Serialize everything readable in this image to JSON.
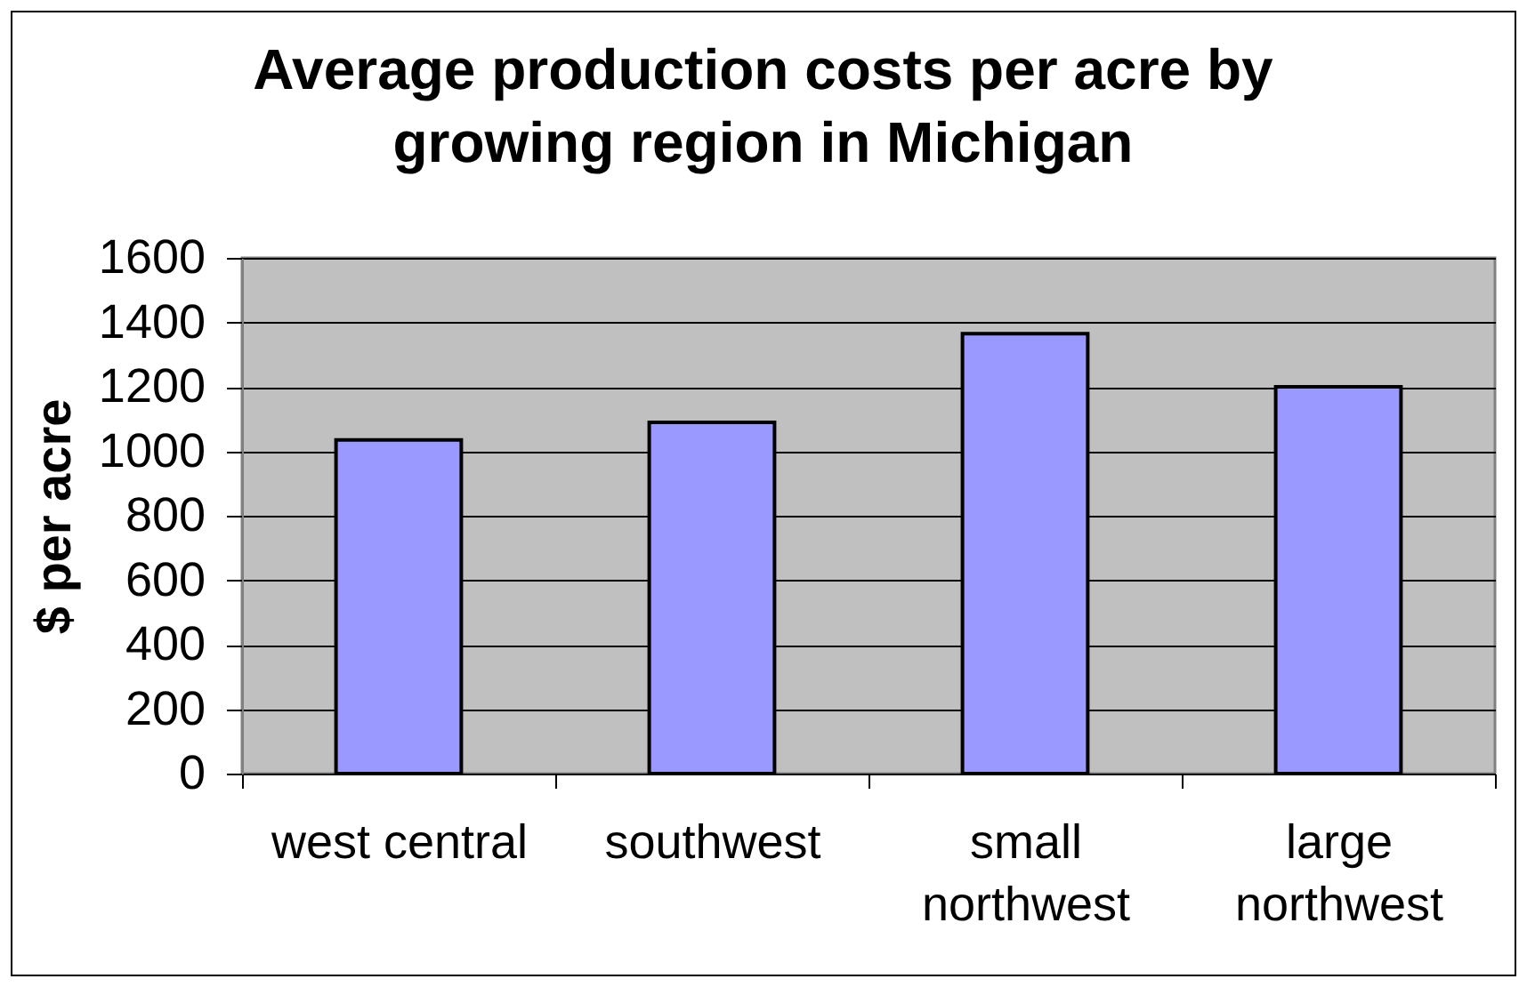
{
  "chart_data": {
    "type": "bar",
    "title": "Average production costs per acre by growing region in Michigan",
    "ylabel": "$ per acre",
    "categories": [
      "west central",
      "southwest",
      "small northwest",
      "large northwest"
    ],
    "values": [
      1035,
      1090,
      1365,
      1200
    ],
    "color": "#9999ff",
    "ylim": [
      0,
      1600
    ],
    "yticks": [
      0,
      200,
      400,
      600,
      800,
      1000,
      1200,
      1400,
      1600
    ],
    "grid": "y"
  }
}
